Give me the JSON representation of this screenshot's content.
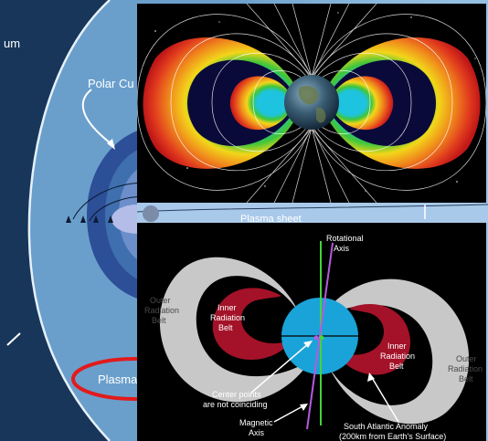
{
  "back_diagram": {
    "label_magnetopause_fragment": "um",
    "label_polar_cusp_fragment": "Polar Cu",
    "label_plasma_sheet_fragment": "Plasma sheet",
    "label_plasmasphere_fragment": "Plasma",
    "colors": {
      "outer_space": "#1b3f66",
      "magnetosheath": "#8fbcdf",
      "magnetosphere": "#3f6fae",
      "cusp_lobe": "#2c4f97",
      "plasmasphere_ring": "#e11b1b"
    }
  },
  "belt_image": {
    "description_icons": [
      "earth-globe-icon",
      "field-line-icon",
      "star-icon"
    ],
    "colors": {
      "outer_red": "#e03a1e",
      "mid_orange": "#f08a1c",
      "yellow": "#f2d61a",
      "green": "#3ec63a",
      "cyan": "#1ec3e0"
    }
  },
  "belt_diagram": {
    "rotational_axis_line1": "Rotational",
    "rotational_axis_line2": "Axis",
    "outer_left_line1": "Outer",
    "outer_left_line2": "Radiation",
    "outer_left_line3": "Belt",
    "inner_left_line1": "Inner",
    "inner_left_line2": "Radiation",
    "inner_left_line3": "Belt",
    "inner_right_line1": "Inner",
    "inner_right_line2": "Radiation",
    "inner_right_line3": "Belt",
    "outer_right_line1": "Outer",
    "outer_right_line2": "Radiation",
    "outer_right_line3": "Belt",
    "center_line1": "Center points",
    "center_line2": "are not coinciding",
    "magnetic_line1": "Magnetic",
    "magnetic_line2": "Axis",
    "saa_line1": "South Atlantic Anomaly",
    "saa_line2": "(200km from Earth's Surface)",
    "colors": {
      "outer_belt": "#c8c8c8",
      "inner_belt": "#a31228",
      "earth": "#1aa3d8",
      "rotational_axis": "#45d43a",
      "magnetic_axis": "#b55ae0"
    }
  }
}
